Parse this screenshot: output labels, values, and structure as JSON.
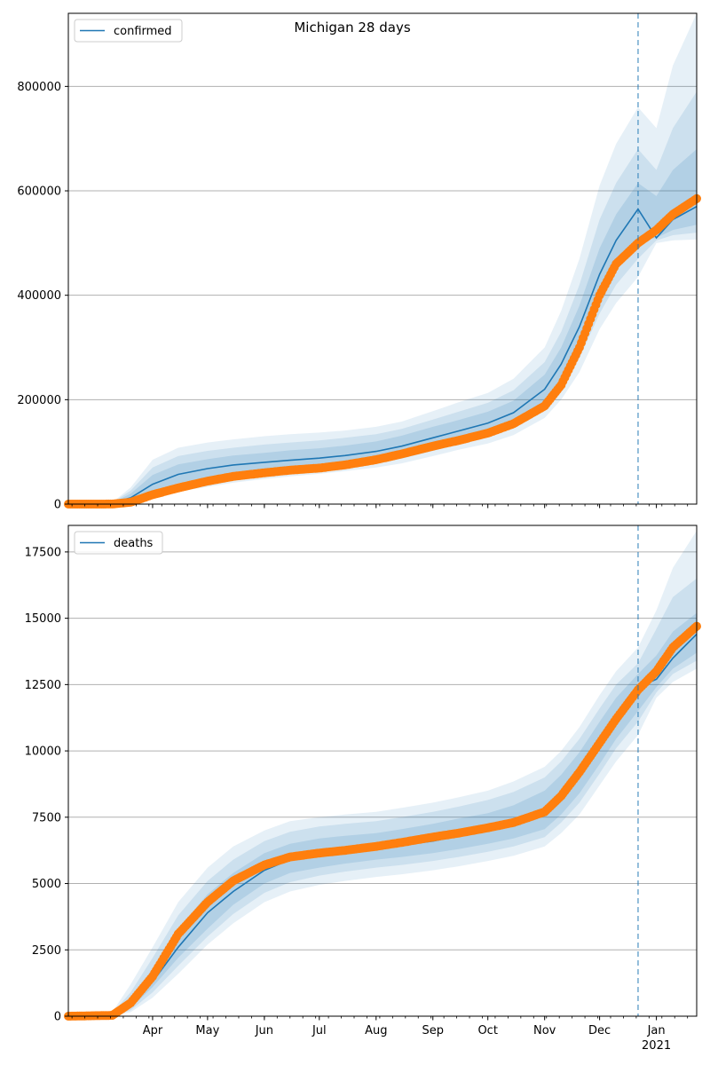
{
  "chart_data": [
    {
      "type": "line",
      "title": "Michigan 28 days",
      "legend": [
        "confirmed"
      ],
      "legend_position": "top-left",
      "xlabel": "",
      "ylabel": "",
      "grid": "horizontal",
      "x_range": [
        "2020-02-15",
        "2021-01-23"
      ],
      "ylim": [
        0,
        940000
      ],
      "y_ticks": [
        0,
        200000,
        400000,
        600000,
        800000
      ],
      "y_tick_labels": [
        "0",
        "200000",
        "400000",
        "600000",
        "800000"
      ],
      "forecast_start": "2020-12-22",
      "series": [
        {
          "name": "confirmed",
          "kind": "model-median",
          "color": "#1f77b4",
          "x": [
            "2020-02-15",
            "2020-03-10",
            "2020-03-20",
            "2020-04-01",
            "2020-04-15",
            "2020-05-01",
            "2020-05-15",
            "2020-06-01",
            "2020-06-15",
            "2020-07-01",
            "2020-07-15",
            "2020-08-01",
            "2020-08-15",
            "2020-09-01",
            "2020-09-15",
            "2020-10-01",
            "2020-10-15",
            "2020-11-01",
            "2020-11-10",
            "2020-11-20",
            "2020-12-01",
            "2020-12-10",
            "2020-12-22",
            "2021-01-01",
            "2021-01-10",
            "2021-01-23"
          ],
          "y": [
            0,
            2000,
            12000,
            38000,
            57000,
            68000,
            75000,
            80000,
            84000,
            88000,
            93000,
            101000,
            111000,
            127000,
            140000,
            155000,
            175000,
            220000,
            268000,
            340000,
            440000,
            505000,
            565000,
            510000,
            545000,
            570000
          ]
        },
        {
          "name": "",
          "kind": "observed",
          "color": "#ff7f0e",
          "x": [
            "2020-02-15",
            "2020-03-10",
            "2020-03-20",
            "2020-04-01",
            "2020-04-15",
            "2020-05-01",
            "2020-05-15",
            "2020-06-01",
            "2020-06-15",
            "2020-07-01",
            "2020-07-15",
            "2020-08-01",
            "2020-08-15",
            "2020-09-01",
            "2020-09-15",
            "2020-10-01",
            "2020-10-15",
            "2020-11-01",
            "2020-11-10",
            "2020-11-20",
            "2020-12-01",
            "2020-12-10",
            "2020-12-22",
            "2021-01-01",
            "2021-01-10",
            "2021-01-23"
          ],
          "y": [
            0,
            100,
            3500,
            18000,
            31000,
            44000,
            53000,
            60000,
            65000,
            69000,
            75000,
            85000,
            96000,
            111000,
            122000,
            136000,
            154000,
            188000,
            228000,
            300000,
            400000,
            460000,
            500000,
            525000,
            555000,
            585000
          ]
        }
      ],
      "bands": [
        {
          "level": "outer",
          "upper": [
            0,
            3000,
            32000,
            85000,
            108000,
            118000,
            124000,
            130000,
            134000,
            137000,
            141000,
            148000,
            158000,
            178000,
            195000,
            213000,
            240000,
            300000,
            370000,
            470000,
            610000,
            690000,
            760000,
            720000,
            840000,
            940000
          ],
          "lower": [
            0,
            800,
            4000,
            14000,
            24000,
            33000,
            41000,
            48000,
            53000,
            58000,
            63000,
            70000,
            78000,
            92000,
            104000,
            116000,
            132000,
            165000,
            200000,
            253000,
            335000,
            385000,
            435000,
            500000,
            505000,
            507000
          ]
        },
        {
          "level": "middle",
          "upper": [
            0,
            2700,
            26000,
            70000,
            92000,
            102000,
            108000,
            114000,
            118000,
            122000,
            127000,
            134000,
            144000,
            162000,
            177000,
            194000,
            218000,
            272000,
            330000,
            420000,
            545000,
            615000,
            680000,
            640000,
            720000,
            790000
          ],
          "lower": [
            0,
            1000,
            6000,
            20000,
            32000,
            42000,
            50000,
            56000,
            61000,
            66000,
            71000,
            78000,
            87000,
            102000,
            115000,
            128000,
            146000,
            182000,
            220000,
            280000,
            365000,
            420000,
            470000,
            505000,
            515000,
            520000
          ]
        },
        {
          "level": "inner",
          "upper": [
            0,
            2400,
            20000,
            56000,
            76000,
            86000,
            93000,
            98000,
            103000,
            107000,
            112000,
            120000,
            131000,
            148000,
            161000,
            177000,
            198000,
            248000,
            300000,
            380000,
            490000,
            555000,
            615000,
            590000,
            640000,
            680000
          ],
          "lower": [
            0,
            1300,
            8000,
            26000,
            40000,
            51000,
            59000,
            65000,
            70000,
            74000,
            79000,
            87000,
            96000,
            112000,
            124000,
            138000,
            156000,
            196000,
            238000,
            302000,
            392000,
            452000,
            505000,
            510000,
            525000,
            535000
          ]
        }
      ]
    },
    {
      "type": "line",
      "title": "",
      "legend": [
        "deaths"
      ],
      "legend_position": "top-left",
      "xlabel": "",
      "ylabel": "",
      "grid": "horizontal",
      "x_range": [
        "2020-02-15",
        "2021-01-23"
      ],
      "ylim": [
        0,
        18500
      ],
      "y_ticks": [
        0,
        2500,
        5000,
        7500,
        10000,
        12500,
        15000,
        17500
      ],
      "y_tick_labels": [
        "0",
        "2500",
        "5000",
        "7500",
        "10000",
        "12500",
        "15000",
        "17500"
      ],
      "x_tick_labels": [
        "Apr",
        "May",
        "Jun",
        "Jul",
        "Aug",
        "Sep",
        "Oct",
        "Nov",
        "Dec",
        "Jan"
      ],
      "x_tick_dates": [
        "2020-04-01",
        "2020-05-01",
        "2020-06-01",
        "2020-07-01",
        "2020-08-01",
        "2020-09-01",
        "2020-10-01",
        "2020-11-01",
        "2020-12-01",
        "2021-01-01"
      ],
      "x_year_label": "2021",
      "forecast_start": "2020-12-22",
      "series": [
        {
          "name": "deaths",
          "kind": "model-median",
          "color": "#1f77b4",
          "x": [
            "2020-02-15",
            "2020-03-10",
            "2020-03-20",
            "2020-04-01",
            "2020-04-15",
            "2020-05-01",
            "2020-05-15",
            "2020-06-01",
            "2020-06-15",
            "2020-07-01",
            "2020-07-15",
            "2020-08-01",
            "2020-08-15",
            "2020-09-01",
            "2020-09-15",
            "2020-10-01",
            "2020-10-15",
            "2020-11-01",
            "2020-11-10",
            "2020-11-20",
            "2020-12-01",
            "2020-12-10",
            "2020-12-22",
            "2021-01-01",
            "2021-01-10",
            "2021-01-23"
          ],
          "y": [
            0,
            50,
            400,
            1300,
            2600,
            3900,
            4700,
            5500,
            5900,
            6100,
            6200,
            6300,
            6450,
            6600,
            6800,
            7000,
            7250,
            7700,
            8300,
            9100,
            10300,
            11300,
            12400,
            12700,
            13500,
            14400
          ]
        },
        {
          "name": "",
          "kind": "observed",
          "color": "#ff7f0e",
          "x": [
            "2020-02-15",
            "2020-03-10",
            "2020-03-20",
            "2020-04-01",
            "2020-04-15",
            "2020-05-01",
            "2020-05-15",
            "2020-06-01",
            "2020-06-15",
            "2020-07-01",
            "2020-07-15",
            "2020-08-01",
            "2020-08-15",
            "2020-09-01",
            "2020-09-15",
            "2020-10-01",
            "2020-10-15",
            "2020-11-01",
            "2020-11-10",
            "2020-11-20",
            "2020-12-01",
            "2020-12-10",
            "2020-12-22",
            "2021-01-01",
            "2021-01-10",
            "2021-01-23"
          ],
          "y": [
            0,
            30,
            500,
            1500,
            3100,
            4300,
            5100,
            5700,
            6000,
            6150,
            6250,
            6400,
            6550,
            6750,
            6900,
            7100,
            7300,
            7700,
            8300,
            9200,
            10300,
            11200,
            12300,
            13000,
            13900,
            14700
          ]
        }
      ],
      "bands": [
        {
          "level": "outer",
          "upper": [
            0,
            150,
            1200,
            2600,
            4300,
            5600,
            6400,
            7000,
            7350,
            7500,
            7600,
            7700,
            7850,
            8050,
            8250,
            8500,
            8850,
            9400,
            10000,
            10900,
            12100,
            13000,
            13900,
            15300,
            16900,
            18300
          ],
          "lower": [
            0,
            10,
            150,
            700,
            1600,
            2700,
            3500,
            4300,
            4700,
            4950,
            5100,
            5250,
            5350,
            5500,
            5650,
            5850,
            6050,
            6400,
            6900,
            7600,
            8700,
            9600,
            10600,
            12000,
            12600,
            13100
          ]
        },
        {
          "level": "middle",
          "upper": [
            0,
            110,
            900,
            2200,
            3800,
            5100,
            5900,
            6600,
            6950,
            7150,
            7250,
            7350,
            7500,
            7700,
            7900,
            8150,
            8450,
            9000,
            9600,
            10450,
            11600,
            12500,
            13300,
            14600,
            15800,
            16500
          ],
          "lower": [
            0,
            20,
            220,
            900,
            1900,
            3000,
            3850,
            4650,
            5050,
            5300,
            5450,
            5600,
            5700,
            5850,
            6000,
            6200,
            6400,
            6750,
            7300,
            8050,
            9150,
            10100,
            11100,
            12200,
            12900,
            13400
          ]
        },
        {
          "level": "inner",
          "upper": [
            0,
            80,
            650,
            1800,
            3300,
            4600,
            5400,
            6150,
            6500,
            6700,
            6800,
            6900,
            7050,
            7250,
            7450,
            7650,
            7950,
            8500,
            9100,
            9950,
            11100,
            12000,
            12900,
            13600,
            14500,
            15200
          ],
          "lower": [
            0,
            30,
            300,
            1100,
            2200,
            3300,
            4200,
            5000,
            5400,
            5600,
            5750,
            5900,
            6000,
            6150,
            6300,
            6500,
            6700,
            7050,
            7600,
            8400,
            9500,
            10450,
            11500,
            12400,
            13100,
            13700
          ]
        }
      ]
    }
  ]
}
